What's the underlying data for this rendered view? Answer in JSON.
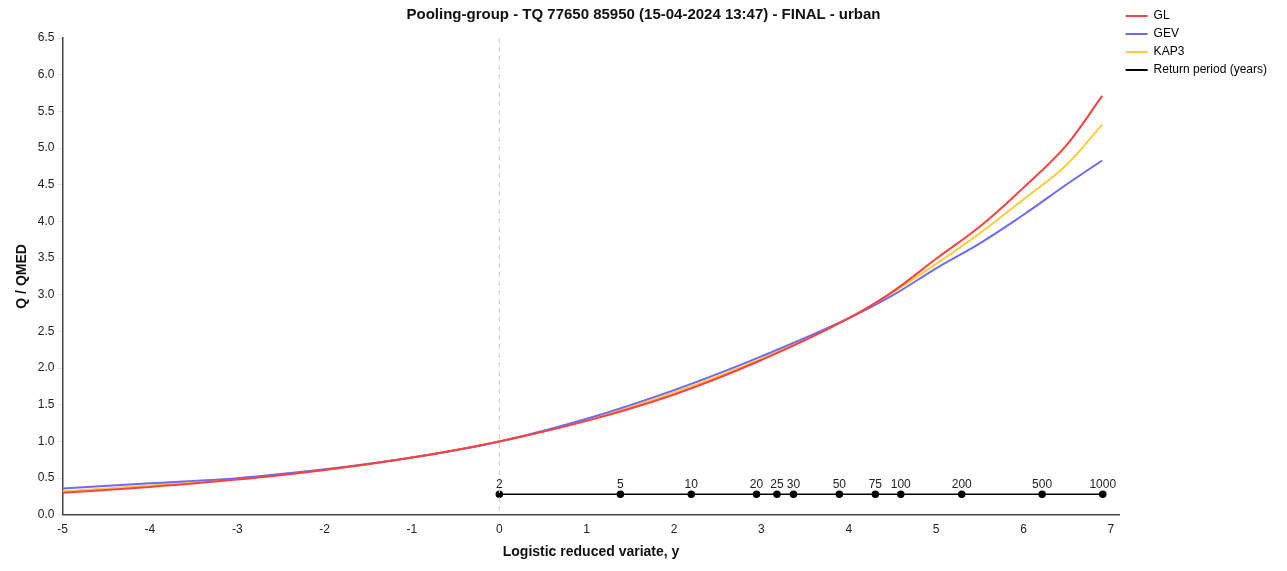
{
  "chart_data": {
    "type": "line",
    "title": "Pooling-group - TQ 77650 85950 (15-04-2024 13:47) - FINAL - urban",
    "xlabel": "Logistic reduced variate, y",
    "ylabel": "Q / QMED",
    "x": [
      -5,
      -4,
      -3,
      -2,
      -1,
      0,
      1,
      2,
      3,
      4,
      4.5,
      5,
      5.5,
      6,
      6.5,
      6.9
    ],
    "series": [
      {
        "name": "GL",
        "color": "#ff4040",
        "marker": "none",
        "values": [
          0.3,
          0.38,
          0.48,
          0.61,
          0.78,
          1.0,
          1.28,
          1.64,
          2.11,
          2.68,
          3.04,
          3.49,
          3.93,
          4.46,
          5.05,
          5.71
        ]
      },
      {
        "name": "GEV",
        "color": "#6b6bff",
        "marker": "none",
        "values": [
          0.36,
          0.43,
          0.5,
          0.62,
          0.78,
          1.0,
          1.31,
          1.7,
          2.16,
          2.68,
          2.99,
          3.36,
          3.7,
          4.09,
          4.51,
          4.83
        ]
      },
      {
        "name": "KAP3",
        "color": "#ffcc40",
        "marker": "none",
        "values": [
          0.32,
          0.4,
          0.49,
          0.61,
          0.78,
          1.0,
          1.29,
          1.67,
          2.13,
          2.68,
          3.03,
          3.42,
          3.84,
          4.3,
          4.78,
          5.32
        ]
      },
      {
        "name": "Return period (years)",
        "color": "#000000",
        "marker": "circle",
        "x": [
          0,
          1.386,
          2.197,
          2.944,
          3.178,
          3.367,
          3.892,
          4.304,
          4.595,
          5.293,
          6.213,
          6.907
        ],
        "values": [
          0.28,
          0.28,
          0.28,
          0.28,
          0.28,
          0.28,
          0.28,
          0.28,
          0.28,
          0.28,
          0.28,
          0.28
        ]
      }
    ],
    "annotations": [
      {
        "text": "2",
        "x": 0,
        "y": 0.28
      },
      {
        "text": "5",
        "x": 1.386,
        "y": 0.28
      },
      {
        "text": "10",
        "x": 2.197,
        "y": 0.28
      },
      {
        "text": "20",
        "x": 2.944,
        "y": 0.28
      },
      {
        "text": "25",
        "x": 3.178,
        "y": 0.28
      },
      {
        "text": "30",
        "x": 3.367,
        "y": 0.28
      },
      {
        "text": "50",
        "x": 3.892,
        "y": 0.28
      },
      {
        "text": "75",
        "x": 4.304,
        "y": 0.28
      },
      {
        "text": "100",
        "x": 4.595,
        "y": 0.28
      },
      {
        "text": "200",
        "x": 5.293,
        "y": 0.28
      },
      {
        "text": "500",
        "x": 6.213,
        "y": 0.28
      },
      {
        "text": "1000",
        "x": 6.907,
        "y": 0.28
      }
    ],
    "xlim": [
      -5,
      7.1
    ],
    "xticks": [
      -5,
      -4,
      -3,
      -2,
      -1,
      0,
      1,
      2,
      3,
      4,
      5,
      6,
      7
    ],
    "ylim": [
      0,
      6.5
    ],
    "yticks": [
      {
        "value": 0,
        "label": "0.0"
      },
      {
        "value": 0.5,
        "label": "0.5"
      },
      {
        "value": 1,
        "label": "1.0"
      },
      {
        "value": 1.5,
        "label": "1.5"
      },
      {
        "value": 2,
        "label": "2.0"
      },
      {
        "value": 2.5,
        "label": "2.5"
      },
      {
        "value": 3,
        "label": "3.0"
      },
      {
        "value": 3.5,
        "label": "3.5"
      },
      {
        "value": 4,
        "label": "4.0"
      },
      {
        "value": 4.5,
        "label": "4.5"
      },
      {
        "value": 5,
        "label": "5.0"
      },
      {
        "value": 5.5,
        "label": "5.5"
      },
      {
        "value": 6,
        "label": "6.0"
      },
      {
        "value": 6.5,
        "label": "6.5"
      }
    ],
    "ref_lines": [
      {
        "axis": "x",
        "value": 0,
        "color": "#cccccc",
        "line_style": "dashed"
      }
    ],
    "grid": false,
    "legend": "top right"
  }
}
